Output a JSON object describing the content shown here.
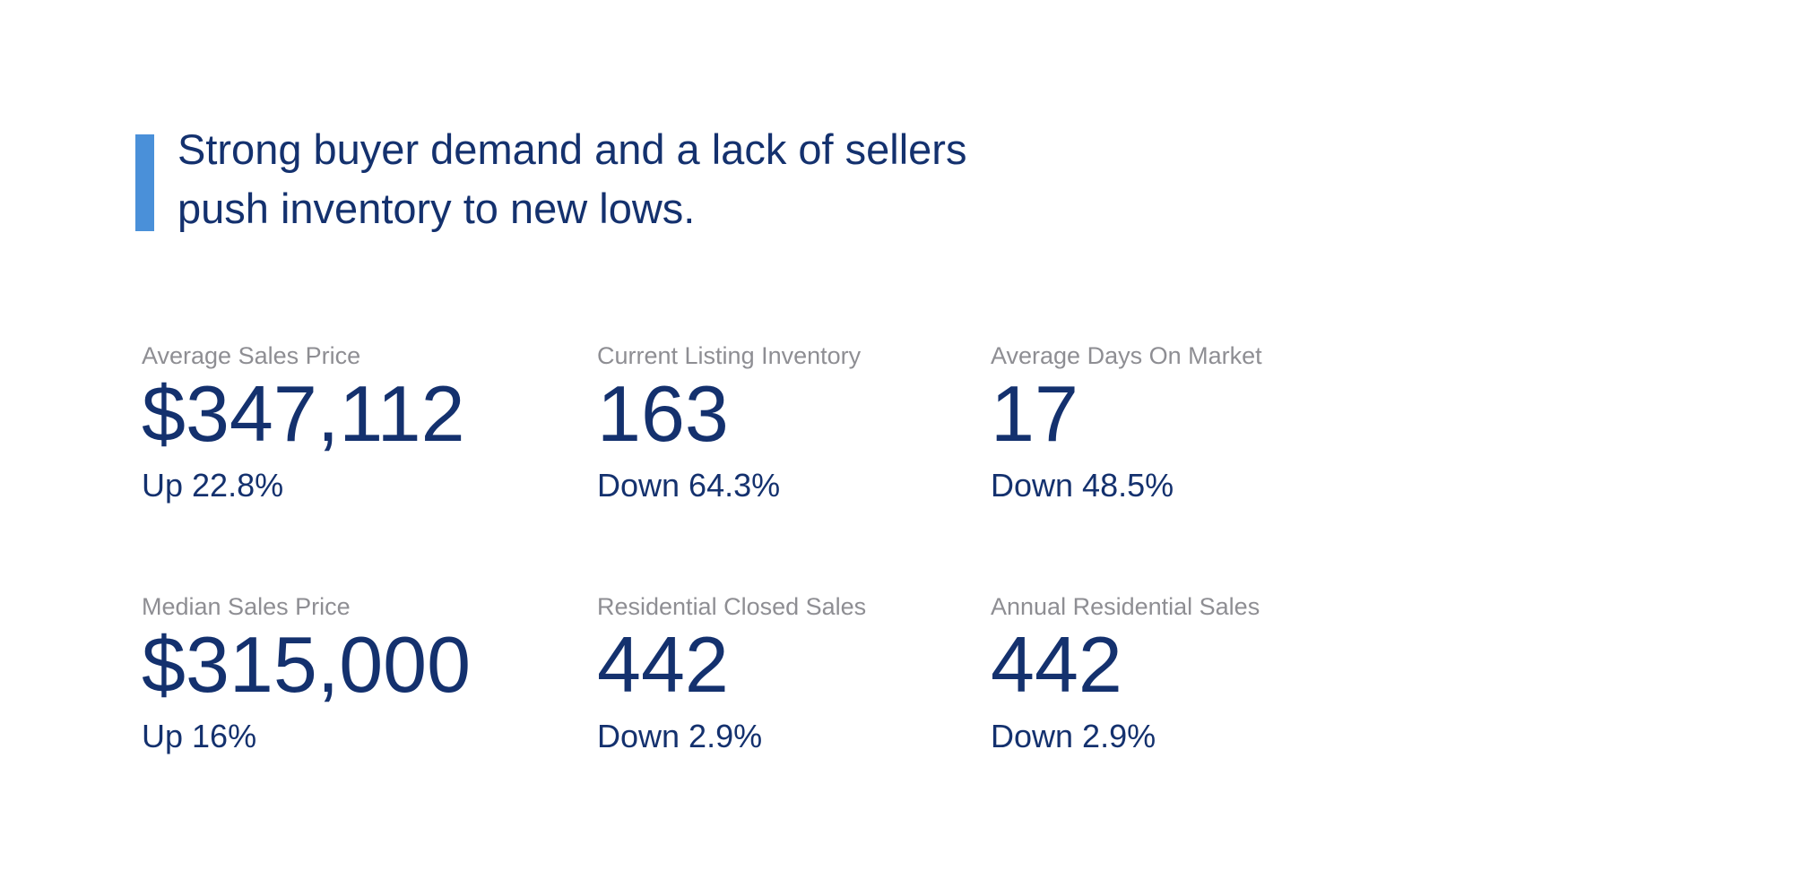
{
  "headline": {
    "text": "Strong buyer demand and a lack of sellers push inventory to new lows."
  },
  "stats": [
    {
      "label": "Average Sales Price",
      "value": "$347,112",
      "change": "Up 22.8%"
    },
    {
      "label": "Current Listing Inventory",
      "value": "163",
      "change": "Down 64.3%"
    },
    {
      "label": "Average Days On Market",
      "value": "17",
      "change": "Down 48.5%"
    },
    {
      "label": "Median Sales Price",
      "value": "$315,000",
      "change": "Up 16%"
    },
    {
      "label": "Residential Closed Sales",
      "value": "442",
      "change": "Down 2.9%"
    },
    {
      "label": "Annual Residential Sales",
      "value": "442",
      "change": "Down 2.9%"
    }
  ],
  "colors": {
    "accent_bar": "#4a90d9",
    "navy_text": "#14316e",
    "label_gray": "#8e8e93",
    "background": "#ffffff"
  }
}
